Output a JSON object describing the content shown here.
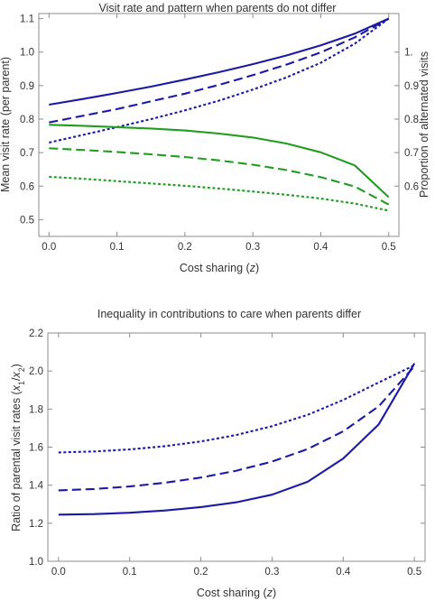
{
  "chart_data": [
    {
      "type": "line",
      "title": "Visit rate and pattern when parents do not differ",
      "xlabel": "Cost sharing (z)",
      "ylabel": "Mean visit rate (per parent)",
      "ylabel_right": "Proportion of alternated visits",
      "xlim": [
        -0.015,
        0.515
      ],
      "ylim": [
        0.45,
        1.115
      ],
      "xticks": [
        "0.0",
        "0.1",
        "0.2",
        "0.3",
        "0.4",
        "0.5"
      ],
      "yticks": [
        "0.5",
        "0.6",
        "0.7",
        "0.8",
        "0.9",
        "1.0",
        "1.1"
      ],
      "yticks_right": [
        "0.6",
        "0.7",
        "0.8",
        "0.9",
        "1."
      ],
      "colors": {
        "left_axis": "#1a1aa6",
        "right_axis": "#1f9e1f"
      },
      "x": [
        0.0,
        0.05,
        0.1,
        0.15,
        0.2,
        0.25,
        0.3,
        0.35,
        0.4,
        0.45,
        0.5
      ],
      "series": [
        {
          "axis": "left",
          "style": "solid",
          "color": "#1a1aa6",
          "values": [
            0.843,
            0.86,
            0.878,
            0.897,
            0.918,
            0.94,
            0.964,
            0.99,
            1.02,
            1.055,
            1.1
          ]
        },
        {
          "axis": "left",
          "style": "dashed",
          "color": "#1a1aa6",
          "values": [
            0.79,
            0.81,
            0.83,
            0.853,
            0.876,
            0.902,
            0.931,
            0.963,
            0.999,
            1.044,
            1.1
          ]
        },
        {
          "axis": "left",
          "style": "dotted",
          "color": "#1a1aa6",
          "values": [
            0.73,
            0.753,
            0.776,
            0.8,
            0.826,
            0.855,
            0.888,
            0.925,
            0.968,
            1.025,
            1.1
          ]
        },
        {
          "axis": "right",
          "style": "solid",
          "color": "#1f9e1f",
          "values": [
            0.783,
            0.78,
            0.776,
            0.772,
            0.766,
            0.757,
            0.745,
            0.727,
            0.701,
            0.662,
            0.567
          ]
        },
        {
          "axis": "right",
          "style": "dashed",
          "color": "#1f9e1f",
          "values": [
            0.713,
            0.708,
            0.702,
            0.695,
            0.687,
            0.677,
            0.664,
            0.648,
            0.627,
            0.599,
            0.545
          ]
        },
        {
          "axis": "right",
          "style": "dotted",
          "color": "#1f9e1f",
          "values": [
            0.628,
            0.622,
            0.615,
            0.608,
            0.601,
            0.593,
            0.584,
            0.574,
            0.563,
            0.548,
            0.527
          ]
        }
      ]
    },
    {
      "type": "line",
      "title": "Inequality in contributions to care when parents differ",
      "xlabel": "Cost sharing (z)",
      "ylabel": "Ratio of parental visit rates (x1/x2)",
      "xlim": [
        -0.015,
        0.515
      ],
      "ylim": [
        1.0,
        2.2
      ],
      "xticks": [
        "0.0",
        "0.1",
        "0.2",
        "0.3",
        "0.4",
        "0.5"
      ],
      "yticks": [
        "1.0",
        "1.2",
        "1.4",
        "1.6",
        "1.8",
        "2.0",
        "2.2"
      ],
      "x": [
        0.0,
        0.05,
        0.1,
        0.15,
        0.2,
        0.25,
        0.3,
        0.35,
        0.4,
        0.45,
        0.5
      ],
      "series": [
        {
          "style": "solid",
          "color": "#1a1aa6",
          "values": [
            1.245,
            1.248,
            1.255,
            1.267,
            1.285,
            1.31,
            1.35,
            1.418,
            1.54,
            1.72,
            2.04
          ]
        },
        {
          "style": "dashed",
          "color": "#1a1aa6",
          "values": [
            1.373,
            1.38,
            1.393,
            1.413,
            1.44,
            1.476,
            1.524,
            1.59,
            1.683,
            1.815,
            2.025
          ]
        },
        {
          "style": "dotted",
          "color": "#1a1aa6",
          "values": [
            1.572,
            1.577,
            1.588,
            1.605,
            1.63,
            1.664,
            1.71,
            1.77,
            1.848,
            1.94,
            2.03
          ]
        }
      ]
    }
  ]
}
